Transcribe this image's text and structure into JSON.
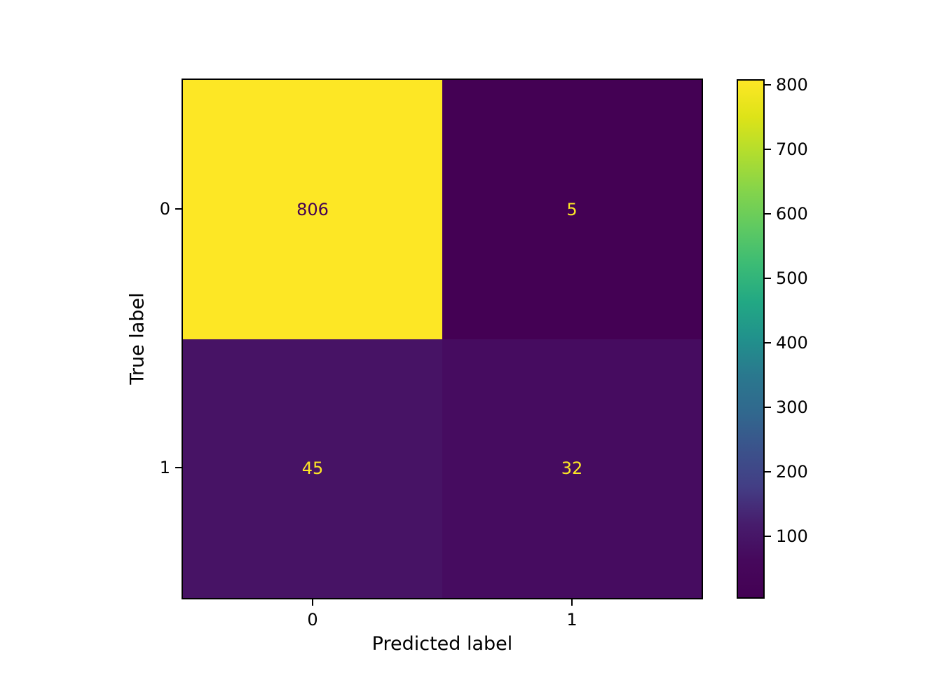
{
  "chart_data": {
    "type": "heatmap",
    "title": "",
    "xlabel": "Predicted label",
    "ylabel": "True label",
    "x_tick_labels": [
      "0",
      "1"
    ],
    "y_tick_labels": [
      "0",
      "1"
    ],
    "matrix": [
      [
        806,
        5
      ],
      [
        45,
        32
      ]
    ],
    "vmin": 5,
    "vmax": 806,
    "colormap": "viridis",
    "grid": false,
    "colorbar": {
      "position": "right",
      "ticks": [
        100,
        200,
        300,
        400,
        500,
        600,
        700,
        800
      ]
    },
    "cell_colors": [
      [
        "#fde725",
        "#440154"
      ],
      [
        "#471365",
        "#460c60"
      ]
    ],
    "cell_text_colors": [
      [
        "#440154",
        "#fde725"
      ],
      [
        "#fde725",
        "#fde725"
      ]
    ],
    "viridis_stops": [
      "#440154",
      "#46085c",
      "#471d6d",
      "#433e85",
      "#3b528b",
      "#31688e",
      "#2a788e",
      "#21918c",
      "#22a884",
      "#3bbb75",
      "#5ec962",
      "#84d44b",
      "#b0dd2f",
      "#dde318",
      "#fde725"
    ]
  },
  "colors": {
    "background": "#ffffff",
    "spine": "#000000",
    "tick": "#000000",
    "text": "#000000",
    "accent_max": "#fde725",
    "accent_min": "#440154"
  }
}
